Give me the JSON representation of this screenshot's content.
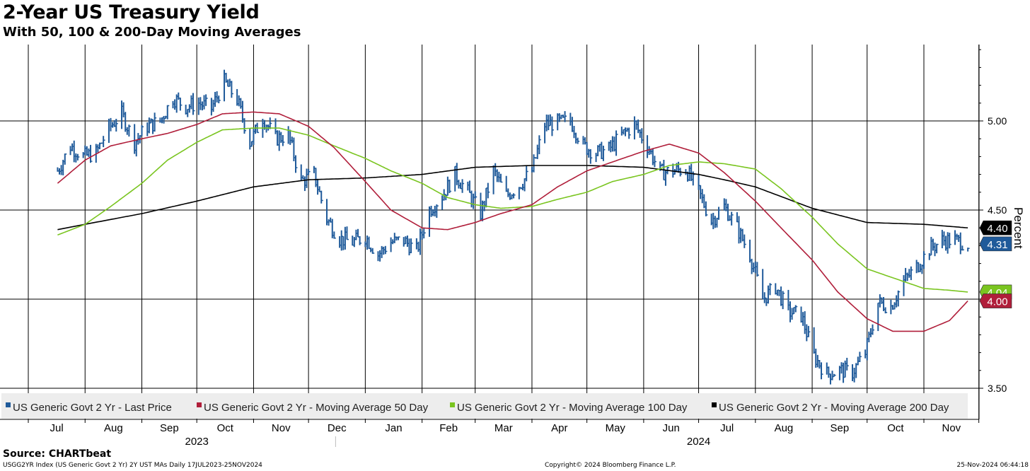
{
  "chart_data": {
    "type": "line",
    "title": "2-Year US Treasury Yield",
    "subtitle": "With 50, 100 & 200-Day Moving Averages",
    "ylabel": "Percent",
    "ylim": [
      3.45,
      5.5
    ],
    "y_ticks": [
      "3.50",
      "4.00",
      "4.50",
      "5.00"
    ],
    "grid": true,
    "legend_position": "bottom-left",
    "x_months": [
      "Jul",
      "Aug",
      "Sep",
      "Oct",
      "Nov",
      "Dec",
      "Jan",
      "Feb",
      "Mar",
      "Apr",
      "May",
      "Jun",
      "Jul",
      "Aug",
      "Sep",
      "Oct",
      "Nov"
    ],
    "x_years": [
      "2023",
      "2024"
    ],
    "series": [
      {
        "name": "US Generic Govt 2 Yr - Last Price",
        "style": "bars",
        "color": "#1f5a9a",
        "last_label": "4.31",
        "x": [
          "2023-07-17",
          "2023-07-24",
          "2023-07-31",
          "2023-08-07",
          "2023-08-14",
          "2023-08-21",
          "2023-08-28",
          "2023-09-04",
          "2023-09-11",
          "2023-09-18",
          "2023-09-25",
          "2023-10-02",
          "2023-10-09",
          "2023-10-16",
          "2023-10-23",
          "2023-10-30",
          "2023-11-06",
          "2023-11-13",
          "2023-11-20",
          "2023-11-27",
          "2023-12-04",
          "2023-12-11",
          "2023-12-18",
          "2023-12-25",
          "2024-01-01",
          "2024-01-08",
          "2024-01-15",
          "2024-01-22",
          "2024-01-29",
          "2024-02-05",
          "2024-02-12",
          "2024-02-19",
          "2024-02-26",
          "2024-03-04",
          "2024-03-11",
          "2024-03-18",
          "2024-03-25",
          "2024-04-01",
          "2024-04-08",
          "2024-04-15",
          "2024-04-22",
          "2024-04-29",
          "2024-05-06",
          "2024-05-13",
          "2024-05-20",
          "2024-05-27",
          "2024-06-03",
          "2024-06-10",
          "2024-06-17",
          "2024-06-24",
          "2024-07-01",
          "2024-07-08",
          "2024-07-15",
          "2024-07-22",
          "2024-07-29",
          "2024-08-05",
          "2024-08-12",
          "2024-08-19",
          "2024-08-26",
          "2024-09-02",
          "2024-09-09",
          "2024-09-16",
          "2024-09-23",
          "2024-09-30",
          "2024-10-07",
          "2024-10-14",
          "2024-10-21",
          "2024-10-28",
          "2024-11-04",
          "2024-11-11",
          "2024-11-18",
          "2024-11-25"
        ],
        "values": [
          4.72,
          4.86,
          4.8,
          4.82,
          4.96,
          5.04,
          4.88,
          4.97,
          5.0,
          5.13,
          5.08,
          5.1,
          5.07,
          5.22,
          5.12,
          4.88,
          5.02,
          4.9,
          4.92,
          4.66,
          4.7,
          4.45,
          4.34,
          4.32,
          4.35,
          4.25,
          4.32,
          4.33,
          4.27,
          4.5,
          4.58,
          4.7,
          4.6,
          4.48,
          4.72,
          4.58,
          4.64,
          4.72,
          4.98,
          4.99,
          5.0,
          4.86,
          4.82,
          4.84,
          4.92,
          4.98,
          4.86,
          4.71,
          4.72,
          4.73,
          4.6,
          4.44,
          4.52,
          4.4,
          4.25,
          4.0,
          4.07,
          3.93,
          3.91,
          3.68,
          3.58,
          3.6,
          3.59,
          3.7,
          3.98,
          3.96,
          4.1,
          4.18,
          4.28,
          4.33,
          4.33,
          4.31
        ]
      },
      {
        "name": "US Generic Govt 2 Yr - Moving Average 50 Day",
        "style": "line",
        "color": "#b01e3a",
        "last_label": "4.00",
        "x": [
          "2023-07-17",
          "2023-08-01",
          "2023-08-15",
          "2023-09-01",
          "2023-09-15",
          "2023-10-01",
          "2023-10-15",
          "2023-11-01",
          "2023-11-15",
          "2023-12-01",
          "2023-12-15",
          "2024-01-01",
          "2024-01-15",
          "2024-02-01",
          "2024-02-15",
          "2024-03-01",
          "2024-03-15",
          "2024-04-01",
          "2024-04-15",
          "2024-05-01",
          "2024-05-15",
          "2024-06-01",
          "2024-06-15",
          "2024-07-01",
          "2024-07-15",
          "2024-08-01",
          "2024-08-15",
          "2024-09-01",
          "2024-09-15",
          "2024-10-01",
          "2024-10-15",
          "2024-11-01",
          "2024-11-15",
          "2024-11-25"
        ],
        "values": [
          4.65,
          4.78,
          4.86,
          4.9,
          4.93,
          4.98,
          5.04,
          5.05,
          5.04,
          4.97,
          4.85,
          4.66,
          4.5,
          4.4,
          4.39,
          4.43,
          4.48,
          4.53,
          4.63,
          4.72,
          4.77,
          4.83,
          4.87,
          4.82,
          4.71,
          4.55,
          4.4,
          4.22,
          4.04,
          3.89,
          3.82,
          3.82,
          3.88,
          3.99
        ]
      },
      {
        "name": "US Generic Govt 2 Yr - Moving Average 100 Day",
        "style": "line",
        "color": "#7ac520",
        "last_label": "4.04",
        "x": [
          "2023-07-17",
          "2023-08-01",
          "2023-08-15",
          "2023-09-01",
          "2023-09-15",
          "2023-10-01",
          "2023-10-15",
          "2023-11-01",
          "2023-11-15",
          "2023-12-01",
          "2023-12-15",
          "2024-01-01",
          "2024-01-15",
          "2024-02-01",
          "2024-02-15",
          "2024-03-01",
          "2024-03-15",
          "2024-04-01",
          "2024-04-15",
          "2024-05-01",
          "2024-05-15",
          "2024-06-01",
          "2024-06-15",
          "2024-07-01",
          "2024-07-15",
          "2024-08-01",
          "2024-08-15",
          "2024-09-01",
          "2024-09-15",
          "2024-10-01",
          "2024-10-15",
          "2024-11-01",
          "2024-11-15",
          "2024-11-25"
        ],
        "values": [
          4.36,
          4.42,
          4.52,
          4.65,
          4.78,
          4.88,
          4.95,
          4.96,
          4.96,
          4.92,
          4.86,
          4.79,
          4.72,
          4.65,
          4.57,
          4.53,
          4.51,
          4.52,
          4.56,
          4.6,
          4.66,
          4.7,
          4.75,
          4.77,
          4.76,
          4.73,
          4.62,
          4.46,
          4.31,
          4.17,
          4.12,
          4.06,
          4.05,
          4.04
        ]
      },
      {
        "name": "US Generic Govt 2 Yr - Moving Average 200 Day",
        "style": "line",
        "color": "#000000",
        "last_label": "4.40",
        "x": [
          "2023-07-17",
          "2023-08-01",
          "2023-09-01",
          "2023-10-01",
          "2023-11-01",
          "2023-12-01",
          "2024-01-01",
          "2024-02-01",
          "2024-03-01",
          "2024-04-01",
          "2024-05-01",
          "2024-06-01",
          "2024-07-01",
          "2024-07-15",
          "2024-08-01",
          "2024-09-01",
          "2024-10-01",
          "2024-11-01",
          "2024-11-25"
        ],
        "values": [
          4.39,
          4.42,
          4.48,
          4.55,
          4.63,
          4.67,
          4.68,
          4.7,
          4.74,
          4.75,
          4.75,
          4.74,
          4.7,
          4.67,
          4.63,
          4.51,
          4.43,
          4.42,
          4.4
        ]
      }
    ]
  },
  "source_text": "Source:  CHARTbeat",
  "footer_left": "USGG2YR Index (US Generic Govt 2 Yr) 2Y UST MAs  Daily 17JUL2023-25NOV2024",
  "footer_center": "Copyright© 2024 Bloomberg Finance L.P.",
  "footer_right": "25-Nov-2024 06:44:18"
}
